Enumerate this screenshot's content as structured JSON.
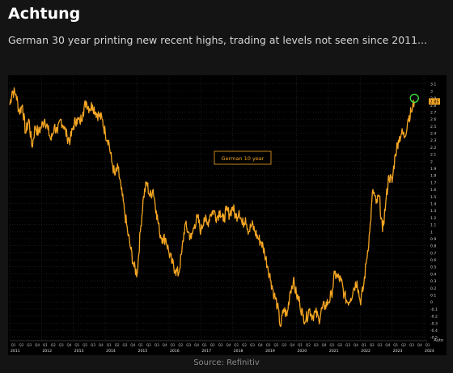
{
  "header": {
    "title": "Achtung",
    "subtitle": "German 30 year printing new recent highs, trading at levels not seen since 2011..."
  },
  "footer": {
    "source": "Source: Refinitiv"
  },
  "colors": {
    "line": "#f5a623",
    "background": "#141414",
    "plot_background": "#000000",
    "grid": "#3a3a3a",
    "highlight_circle": "#3ddc3d"
  },
  "chart_data": {
    "type": "line",
    "series": [
      {
        "name": "German 10 year",
        "x": [
          2011.0,
          2011.08,
          2011.2,
          2011.3,
          2011.4,
          2011.5,
          2011.6,
          2011.7,
          2011.8,
          2011.9,
          2012.0,
          2012.1,
          2012.2,
          2012.3,
          2012.4,
          2012.5,
          2012.6,
          2012.7,
          2012.8,
          2012.9,
          2013.0,
          2013.1,
          2013.2,
          2013.3,
          2013.4,
          2013.5,
          2013.6,
          2013.7,
          2013.8,
          2013.9,
          2014.0,
          2014.1,
          2014.2,
          2014.3,
          2014.4,
          2014.5,
          2014.6,
          2014.7,
          2014.8,
          2014.9,
          2015.0,
          2015.1,
          2015.2,
          2015.3,
          2015.4,
          2015.5,
          2015.6,
          2015.7,
          2015.8,
          2015.9,
          2016.0,
          2016.1,
          2016.2,
          2016.3,
          2016.4,
          2016.5,
          2016.6,
          2016.7,
          2016.8,
          2016.9,
          2017.0,
          2017.1,
          2017.2,
          2017.3,
          2017.4,
          2017.5,
          2017.6,
          2017.7,
          2017.8,
          2017.9,
          2018.0,
          2018.1,
          2018.2,
          2018.3,
          2018.4,
          2018.5,
          2018.6,
          2018.7,
          2018.8,
          2018.9,
          2019.0,
          2019.1,
          2019.2,
          2019.3,
          2019.4,
          2019.5,
          2019.6,
          2019.7,
          2019.8,
          2019.9,
          2020.0,
          2020.1,
          2020.2,
          2020.3,
          2020.4,
          2020.5,
          2020.6,
          2020.7,
          2020.8,
          2020.9,
          2021.0,
          2021.1,
          2021.2,
          2021.3,
          2021.4,
          2021.5,
          2021.6,
          2021.7,
          2021.8,
          2021.9,
          2022.0,
          2022.1,
          2022.2,
          2022.3,
          2022.4,
          2022.5,
          2022.6,
          2022.7,
          2022.8,
          2022.9,
          2023.0,
          2023.1,
          2023.2,
          2023.3,
          2023.4,
          2023.5,
          2023.6,
          2023.7
        ],
        "values": [
          2.8,
          3.0,
          2.95,
          2.7,
          2.8,
          2.4,
          2.6,
          2.2,
          2.5,
          2.4,
          2.5,
          2.6,
          2.45,
          2.3,
          2.5,
          2.4,
          2.6,
          2.5,
          2.35,
          2.3,
          2.5,
          2.6,
          2.55,
          2.7,
          2.85,
          2.75,
          2.8,
          2.7,
          2.65,
          2.6,
          2.4,
          2.3,
          2.0,
          1.8,
          1.9,
          1.6,
          1.3,
          1.0,
          0.75,
          0.5,
          0.4,
          1.0,
          1.5,
          1.7,
          1.5,
          1.6,
          1.3,
          1.0,
          0.9,
          0.9,
          0.7,
          0.55,
          0.45,
          0.4,
          0.7,
          1.1,
          1.0,
          0.9,
          1.1,
          1.2,
          1.0,
          1.2,
          1.1,
          1.25,
          1.3,
          1.2,
          1.3,
          1.15,
          1.3,
          1.25,
          1.35,
          1.2,
          1.3,
          1.1,
          1.2,
          1.0,
          1.1,
          1.0,
          0.9,
          0.85,
          0.7,
          0.5,
          0.3,
          0.1,
          -0.05,
          -0.35,
          -0.1,
          -0.2,
          0.15,
          0.3,
          0.1,
          0.0,
          -0.2,
          -0.25,
          -0.1,
          -0.2,
          -0.15,
          -0.25,
          -0.1,
          -0.05,
          0.0,
          0.1,
          0.4,
          0.35,
          0.3,
          0.1,
          0.0,
          0.05,
          0.2,
          0.3,
          0.0,
          0.2,
          0.6,
          1.0,
          1.6,
          1.4,
          1.5,
          1.0,
          1.4,
          1.8,
          1.7,
          2.1,
          2.3,
          2.4,
          2.35,
          2.6,
          2.7,
          2.85
        ]
      }
    ],
    "ylim": [
      -0.55,
      3.2
    ],
    "xlim": [
      2011.0,
      2024.1
    ],
    "y_ticks": [
      3.1,
      3,
      2.9,
      2.8,
      2.7,
      2.6,
      2.5,
      2.4,
      2.3,
      2.2,
      2.1,
      2,
      1.9,
      1.8,
      1.7,
      1.6,
      1.5,
      1.4,
      1.3,
      1.2,
      1.1,
      1,
      0.9,
      0.8,
      0.7,
      0.6,
      0.5,
      0.4,
      0.3,
      0.2,
      0.1,
      0,
      -0.1,
      -0.2,
      -0.3,
      -0.4,
      -0.5
    ],
    "x_year_labels": [
      "2011",
      "2012",
      "2013",
      "2014",
      "2015",
      "2016",
      "2017",
      "2018",
      "2019",
      "2020",
      "2021",
      "2022",
      "2023",
      "2024"
    ],
    "quarter_labels": [
      "Q1",
      "Q2",
      "Q3",
      "Q4"
    ],
    "last_value_label": "2.85",
    "axis_unit_label": "Auto",
    "grid": true
  }
}
